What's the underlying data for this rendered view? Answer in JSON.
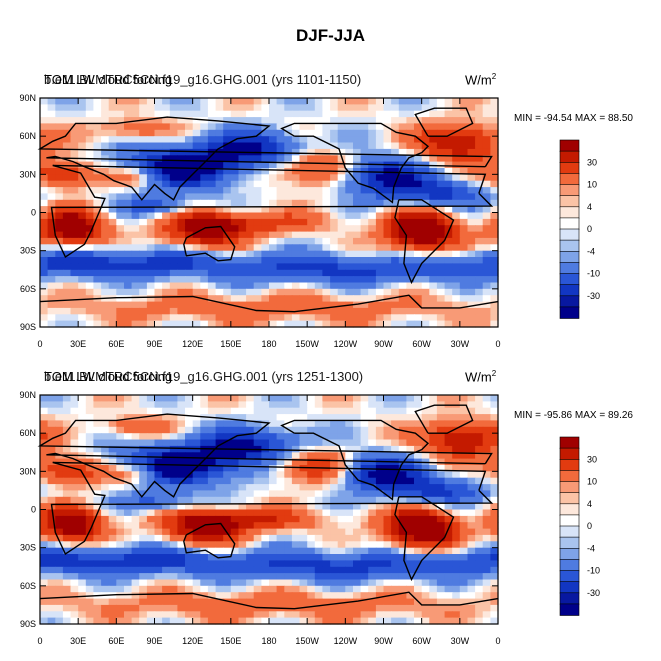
{
  "figure": {
    "title": "DJF-JJA"
  },
  "colorbar": {
    "labels": [
      "30",
      "10",
      "4",
      "0",
      "-4",
      "-10",
      "-30"
    ],
    "colors": [
      "#a00000",
      "#c41a00",
      "#e23b10",
      "#f26a3c",
      "#f89a76",
      "#fbc3a6",
      "#fde8dc",
      "#ffffff",
      "#d8e4f8",
      "#a9c4ef",
      "#7ea3e8",
      "#4f7be0",
      "#2a56d6",
      "#1236c2",
      "#0818a0",
      "#00008a"
    ]
  },
  "axes": {
    "lat_labels": [
      "90N",
      "60N",
      "30N",
      "0",
      "30S",
      "60S",
      "90S"
    ],
    "lon_labels": [
      "0",
      "30E",
      "60E",
      "90E",
      "120E",
      "150E",
      "180",
      "150W",
      "120W",
      "90W",
      "60W",
      "30W",
      "0"
    ]
  },
  "panels": [
    {
      "id": "top",
      "title_left_a": "TOM LW cloud forcing",
      "title_left_b": "b.e11.BLMTRC5CN.f19_g16.GHG.001 (yrs 1101-1150)",
      "units_base": "W/m",
      "units_exp": "2",
      "min_label": "MIN = -94.54",
      "max_label": "MAX =  88.50",
      "min": -94.54,
      "max": 88.5
    },
    {
      "id": "bottom",
      "title_left_a": "TOM LW cloud forcing",
      "title_left_b": "b.e11.BLMTRC5CN.f19_g16.GHG.001 (yrs 1251-1300)",
      "units_base": "W/m",
      "units_exp": "2",
      "min_label": "MIN = -95.86",
      "max_label": "MAX =  89.26",
      "min": -95.86,
      "max": 89.26
    }
  ]
}
